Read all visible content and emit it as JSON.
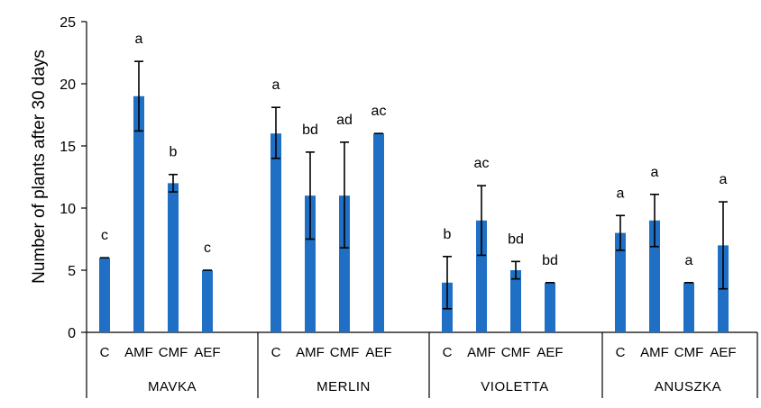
{
  "chart_data": {
    "type": "bar",
    "title": "",
    "ylabel": "Number of plants after 30 days",
    "xlabel": "",
    "ylim": [
      0,
      25
    ],
    "yticks": [
      0,
      5,
      10,
      15,
      20,
      25
    ],
    "grid": false,
    "bar_color": "#1f6fc5",
    "groups": [
      {
        "name": "MAVKA",
        "bars": [
          {
            "category": "C",
            "value": 6,
            "err_low": 6,
            "err_high": 6,
            "label": "c"
          },
          {
            "category": "AMF",
            "value": 19,
            "err_low": 16.2,
            "err_high": 21.8,
            "label": "a"
          },
          {
            "category": "CMF",
            "value": 12,
            "err_low": 11.3,
            "err_high": 12.7,
            "label": "b"
          },
          {
            "category": "AEF",
            "value": 5,
            "err_low": 5,
            "err_high": 5,
            "label": "c"
          }
        ]
      },
      {
        "name": "MERLIN",
        "bars": [
          {
            "category": "C",
            "value": 16,
            "err_low": 14,
            "err_high": 18.1,
            "label": "a"
          },
          {
            "category": "AMF",
            "value": 11,
            "err_low": 7.5,
            "err_high": 14.5,
            "label": "bd"
          },
          {
            "category": "CMF",
            "value": 11,
            "err_low": 6.8,
            "err_high": 15.3,
            "label": "ad"
          },
          {
            "category": "AEF",
            "value": 16,
            "err_low": 16,
            "err_high": 16,
            "label": "ac"
          }
        ]
      },
      {
        "name": "VIOLETTA",
        "bars": [
          {
            "category": "C",
            "value": 4,
            "err_low": 1.9,
            "err_high": 6.1,
            "label": "b"
          },
          {
            "category": "AMF",
            "value": 9,
            "err_low": 6.2,
            "err_high": 11.8,
            "label": "ac"
          },
          {
            "category": "CMF",
            "value": 5,
            "err_low": 4.3,
            "err_high": 5.7,
            "label": "bd"
          },
          {
            "category": "AEF",
            "value": 4,
            "err_low": 4,
            "err_high": 4,
            "label": "bd"
          }
        ]
      },
      {
        "name": "ANUSZKA",
        "bars": [
          {
            "category": "C",
            "value": 8,
            "err_low": 6.6,
            "err_high": 9.4,
            "label": "a"
          },
          {
            "category": "AMF",
            "value": 9,
            "err_low": 6.9,
            "err_high": 11.1,
            "label": "a"
          },
          {
            "category": "CMF",
            "value": 4,
            "err_low": 4,
            "err_high": 4,
            "label": "a"
          },
          {
            "category": "AEF",
            "value": 7,
            "err_low": 3.5,
            "err_high": 10.5,
            "label": "a"
          }
        ]
      }
    ]
  }
}
